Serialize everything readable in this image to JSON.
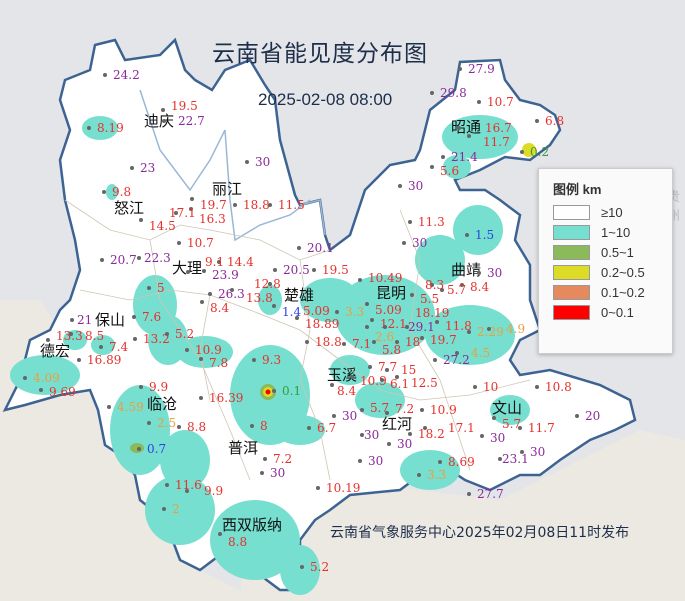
{
  "title": "云南省能见度分布图",
  "time": "2025-02-08 08:00",
  "footer": "云南省气象服务中心2025年02月08日11时发布",
  "neighbor_label": "贵州",
  "legend": {
    "title": "图例 km",
    "items": [
      {
        "label": "≥10",
        "color": "#ffffff"
      },
      {
        "label": "1~10",
        "color": "#76dfcf"
      },
      {
        "label": "0.5~1",
        "color": "#8bba5a"
      },
      {
        "label": "0.2~0.5",
        "color": "#dcdc26"
      },
      {
        "label": "0.1~0.2",
        "color": "#e58a5e"
      },
      {
        "label": "0~0.1",
        "color": "#ff0000"
      }
    ]
  },
  "value_colors": {
    "r": "#e8302c",
    "p": "#8a2a9a",
    "o": "#e8a040",
    "b": "#2a44e0",
    "g": "#3a9a3a"
  },
  "cities": [
    "迪庆",
    "丽江",
    "怒江",
    "大理",
    "楚雄",
    "昆明",
    "曲靖",
    "昭通",
    "保山",
    "德宏",
    "临沧",
    "普洱",
    "玉溪",
    "红河",
    "文山",
    "西双版纳"
  ],
  "stations": [
    {
      "v": "24.2",
      "c": "p"
    },
    {
      "v": "19.5",
      "c": "r"
    },
    {
      "v": "22.7",
      "c": "p"
    },
    {
      "v": "8.19",
      "c": "r"
    },
    {
      "v": "23",
      "c": "p"
    },
    {
      "v": "30",
      "c": "p"
    },
    {
      "v": "9.8",
      "c": "r"
    },
    {
      "v": "19.7",
      "c": "r"
    },
    {
      "v": "16.3",
      "c": "r"
    },
    {
      "v": "18.8",
      "c": "r"
    },
    {
      "v": "11.5",
      "c": "r"
    },
    {
      "v": "17.1",
      "c": "r"
    },
    {
      "v": "14.5",
      "c": "r"
    },
    {
      "v": "10.7",
      "c": "r"
    },
    {
      "v": "20.7",
      "c": "p"
    },
    {
      "v": "22.3",
      "c": "p"
    },
    {
      "v": "14.4",
      "c": "r"
    },
    {
      "v": "23.9",
      "c": "p"
    },
    {
      "v": "9.1",
      "c": "r"
    },
    {
      "v": "20.1",
      "c": "p"
    },
    {
      "v": "20.5",
      "c": "p"
    },
    {
      "v": "19.5",
      "c": "r"
    },
    {
      "v": "5",
      "c": "r"
    },
    {
      "v": "12.8",
      "c": "r"
    },
    {
      "v": "26.3",
      "c": "p"
    },
    {
      "v": "13.8",
      "c": "r"
    },
    {
      "v": "8.4",
      "c": "r"
    },
    {
      "v": "1.4",
      "c": "b"
    },
    {
      "v": "5.09",
      "c": "r"
    },
    {
      "v": "27.9",
      "c": "p"
    },
    {
      "v": "29.8",
      "c": "p"
    },
    {
      "v": "10.7",
      "c": "r"
    },
    {
      "v": "16.7",
      "c": "r"
    },
    {
      "v": "11.7",
      "c": "r"
    },
    {
      "v": "6.8",
      "c": "r"
    },
    {
      "v": "0.2",
      "c": "g"
    },
    {
      "v": "21.4",
      "c": "p"
    },
    {
      "v": "5.6",
      "c": "r"
    },
    {
      "v": "30",
      "c": "p"
    },
    {
      "v": "11.3",
      "c": "r"
    },
    {
      "v": "30",
      "c": "p"
    },
    {
      "v": "1.5",
      "c": "b"
    },
    {
      "v": "30",
      "c": "p"
    },
    {
      "v": "8.4",
      "c": "r"
    },
    {
      "v": "5.7",
      "c": "r"
    },
    {
      "v": "8.3",
      "c": "r"
    },
    {
      "v": "5.5",
      "c": "r"
    },
    {
      "v": "10.49",
      "c": "r"
    },
    {
      "v": "5.09",
      "c": "r"
    },
    {
      "v": "3.3",
      "c": "o"
    },
    {
      "v": "12.1",
      "c": "r"
    },
    {
      "v": "2.6",
      "c": "o"
    },
    {
      "v": "29.1",
      "c": "p"
    },
    {
      "v": "18.19",
      "c": "r"
    },
    {
      "v": "11.8",
      "c": "r"
    },
    {
      "v": "2.29",
      "c": "o"
    },
    {
      "v": "4.9",
      "c": "o"
    },
    {
      "v": "18.89",
      "c": "r"
    },
    {
      "v": "18.8",
      "c": "r"
    },
    {
      "v": "7.1",
      "c": "r"
    },
    {
      "v": "5.8",
      "c": "r"
    },
    {
      "v": "18",
      "c": "r"
    },
    {
      "v": "19.7",
      "c": "r"
    },
    {
      "v": "27.2",
      "c": "p"
    },
    {
      "v": "4.5",
      "c": "o"
    },
    {
      "v": "7.7",
      "c": "r"
    },
    {
      "v": "15",
      "c": "r"
    },
    {
      "v": "10.9",
      "c": "r"
    },
    {
      "v": "6.1",
      "c": "r"
    },
    {
      "v": "12.5",
      "c": "r"
    },
    {
      "v": "8.4",
      "c": "r"
    },
    {
      "v": "10",
      "c": "r"
    },
    {
      "v": "10.8",
      "c": "r"
    },
    {
      "v": "5.7",
      "c": "r"
    },
    {
      "v": "7.2",
      "c": "r"
    },
    {
      "v": "10.9",
      "c": "r"
    },
    {
      "v": "5.7",
      "c": "r"
    },
    {
      "v": "20",
      "c": "p"
    },
    {
      "v": "30",
      "c": "p"
    },
    {
      "v": "6.7",
      "c": "r"
    },
    {
      "v": "30",
      "c": "p"
    },
    {
      "v": "18.2",
      "c": "r"
    },
    {
      "v": "17.1",
      "c": "r"
    },
    {
      "v": "30",
      "c": "p"
    },
    {
      "v": "11.7",
      "c": "r"
    },
    {
      "v": "30",
      "c": "p"
    },
    {
      "v": "30",
      "c": "p"
    },
    {
      "v": "23.1",
      "c": "p"
    },
    {
      "v": "8.69",
      "c": "r"
    },
    {
      "v": "3.3",
      "c": "o"
    },
    {
      "v": "30",
      "c": "p"
    },
    {
      "v": "10.19",
      "c": "r"
    },
    {
      "v": "27.7",
      "c": "p"
    },
    {
      "v": "5.2",
      "c": "r"
    },
    {
      "v": "21",
      "c": "p"
    },
    {
      "v": "7.6",
      "c": "r"
    },
    {
      "v": "13.3",
      "c": "r"
    },
    {
      "v": "8.5",
      "c": "r"
    },
    {
      "v": "13.2",
      "c": "r"
    },
    {
      "v": "5.2",
      "c": "r"
    },
    {
      "v": "7.4",
      "c": "r"
    },
    {
      "v": "16.89",
      "c": "r"
    },
    {
      "v": "10.9",
      "c": "r"
    },
    {
      "v": "7.8",
      "c": "r"
    },
    {
      "v": "9.3",
      "c": "r"
    },
    {
      "v": "4.09",
      "c": "o"
    },
    {
      "v": "9.69",
      "c": "r"
    },
    {
      "v": "9.9",
      "c": "r"
    },
    {
      "v": "0.1",
      "c": "g"
    },
    {
      "v": "16.39",
      "c": "r"
    },
    {
      "v": "4.59",
      "c": "o"
    },
    {
      "v": "2.5",
      "c": "o"
    },
    {
      "v": "8.8",
      "c": "r"
    },
    {
      "v": "8",
      "c": "r"
    },
    {
      "v": "0.7",
      "c": "b"
    },
    {
      "v": "7.2",
      "c": "r"
    },
    {
      "v": "30",
      "c": "p"
    },
    {
      "v": "11.6",
      "c": "r"
    },
    {
      "v": "9.9",
      "c": "r"
    },
    {
      "v": "2",
      "c": "o"
    },
    {
      "v": "8.8",
      "c": "r"
    }
  ]
}
